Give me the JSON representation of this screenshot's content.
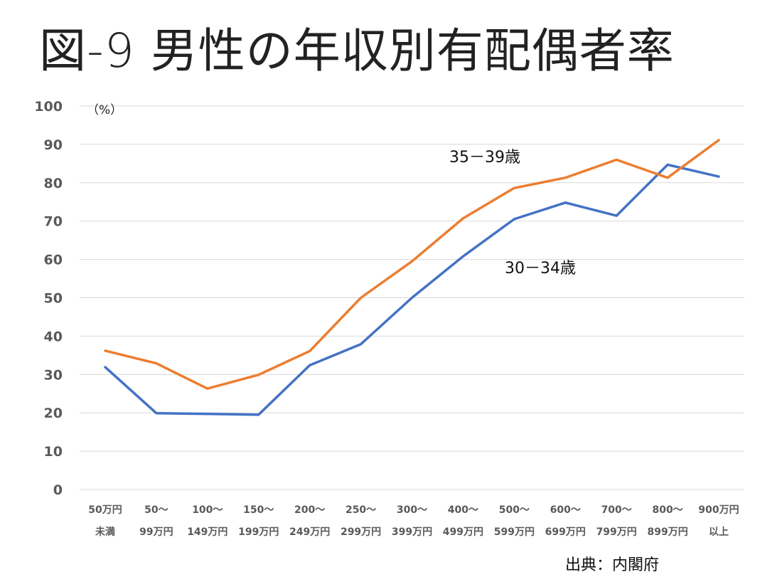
{
  "title": "図-9 男性の年収別有配偶者率",
  "source": "出典：内閣府",
  "chart_data": {
    "type": "line",
    "title": "図-9 男性の年収別有配偶者率",
    "unit_label": "（%）",
    "categories": [
      [
        "50万円",
        "未満"
      ],
      [
        "50〜",
        "99万円"
      ],
      [
        "100〜",
        "149万円"
      ],
      [
        "150〜",
        "199万円"
      ],
      [
        "200〜",
        "249万円"
      ],
      [
        "250〜",
        "299万円"
      ],
      [
        "300〜",
        "399万円"
      ],
      [
        "400〜",
        "499万円"
      ],
      [
        "500〜",
        "599万円"
      ],
      [
        "600〜",
        "699万円"
      ],
      [
        "700〜",
        "799万円"
      ],
      [
        "800〜",
        "899万円"
      ],
      [
        "900万円",
        "以上"
      ]
    ],
    "series": [
      {
        "name": "30－34歳",
        "color": "#4472C4",
        "values": [
          31.9,
          19.9,
          19.7,
          19.5,
          32.4,
          37.9,
          50.0,
          60.8,
          70.5,
          74.8,
          71.4,
          84.7,
          81.6
        ]
      },
      {
        "name": "35－39歳",
        "color": "#ED7D31",
        "values": [
          36.2,
          32.9,
          26.3,
          29.9,
          36.1,
          50.0,
          59.5,
          70.7,
          78.6,
          81.3,
          86.0,
          81.3,
          91.1
        ]
      }
    ],
    "y_ticks": [
      "0",
      "10",
      "20",
      "30",
      "40",
      "50",
      "60",
      "70",
      "80",
      "90",
      "100"
    ],
    "ylim": [
      0,
      100
    ],
    "grid": true,
    "legend": "inline-annotations"
  }
}
